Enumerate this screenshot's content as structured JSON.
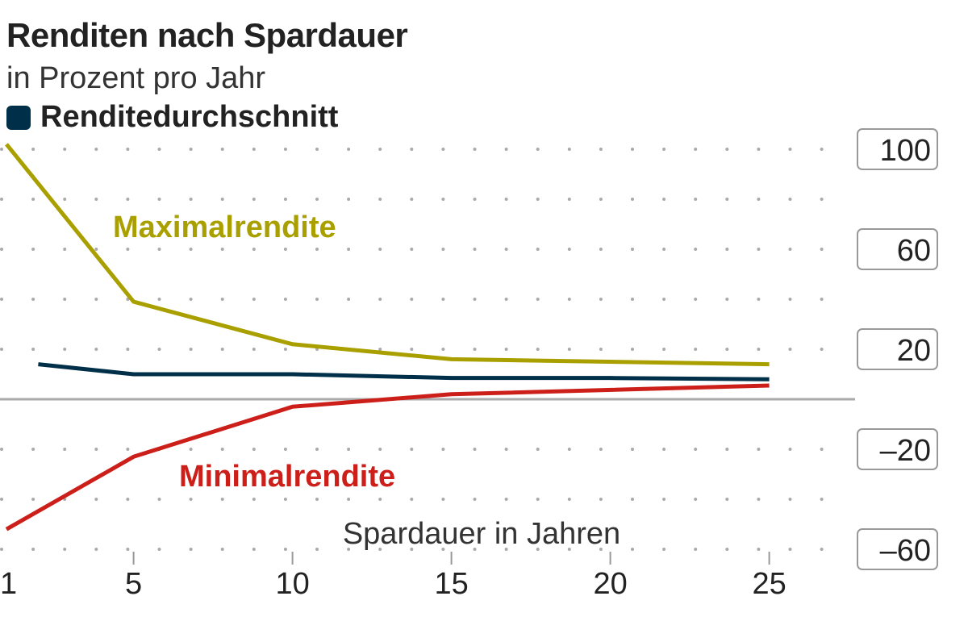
{
  "chart_data": {
    "type": "line",
    "title": "Renditen nach Spardauer",
    "subtitle": "in Prozent pro Jahr",
    "xlabel": "Spardauer in Jahren",
    "ylabel": "",
    "x_ticks": [
      1,
      5,
      10,
      15,
      20,
      25
    ],
    "y_ticks": [
      100,
      60,
      20,
      -20,
      -60
    ],
    "y_tick_labels": [
      "100",
      "60",
      "20",
      "–20",
      "–60"
    ],
    "xlim": [
      1,
      28
    ],
    "ylim": [
      -66,
      104
    ],
    "grid": "dotted",
    "legend": [
      "Renditedurchschnitt"
    ],
    "legend_position": "top-left",
    "series": [
      {
        "name": "Maximalrendite",
        "color": "#a9a000",
        "x": [
          1,
          5,
          10,
          15,
          25
        ],
        "y": [
          102,
          39,
          22,
          16,
          14
        ]
      },
      {
        "name": "Renditedurchschnitt",
        "color": "#003049",
        "x": [
          2,
          5,
          10,
          15,
          20,
          25
        ],
        "y": [
          14,
          10,
          10,
          8.5,
          8.5,
          8
        ]
      },
      {
        "name": "Minimalrendite",
        "color": "#cc1f1a",
        "x": [
          1,
          5,
          10,
          15,
          25
        ],
        "y": [
          -52,
          -23,
          -3,
          2,
          5.5
        ]
      }
    ]
  }
}
